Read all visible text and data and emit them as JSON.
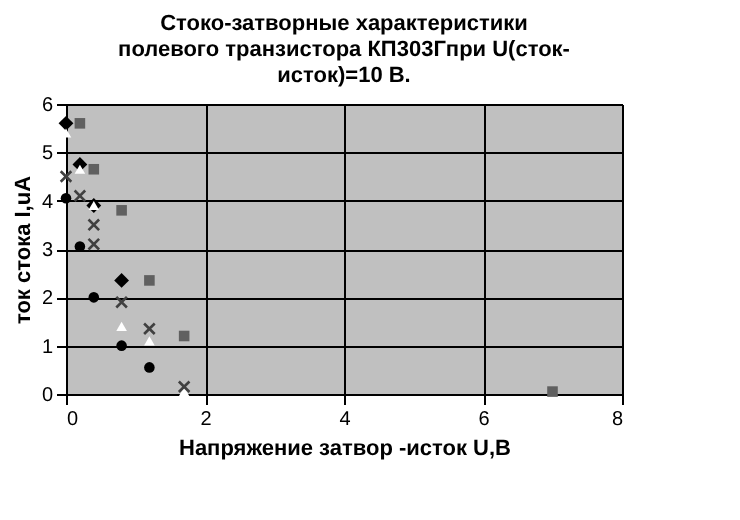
{
  "chart_data": {
    "type": "scatter",
    "title": [
      "Стоко-затворные  характеристики",
      "полевого транзистора КП303Гпри U(сток-",
      "исток)=10 В."
    ],
    "xlabel": "Напряжение затвор -исток U,B",
    "ylabel": "ток стока I,uA",
    "xlim": [
      0,
      8
    ],
    "xticks": [
      0,
      2,
      4,
      6,
      8
    ],
    "ylim": [
      0,
      6
    ],
    "yticks": [
      0,
      1,
      2,
      3,
      4,
      5,
      6
    ],
    "grid": true,
    "series": [
      {
        "color": "#000000",
        "marker": "diamond",
        "x": [
          0,
          0.2,
          0.4,
          0.8
        ],
        "values": [
          5.6,
          4.75,
          3.9,
          2.35
        ]
      },
      {
        "color": "#606060",
        "marker": "square",
        "x": [
          0.2,
          0.4,
          0.8,
          1.2,
          1.7,
          7.0
        ],
        "values": [
          5.6,
          4.65,
          3.8,
          2.35,
          1.2,
          0.05
        ]
      },
      {
        "color": "#ffffff",
        "marker": "triangle",
        "x": [
          0,
          0.2,
          0.4,
          0.8,
          1.2,
          1.7
        ],
        "values": [
          5.4,
          4.65,
          3.9,
          1.4,
          1.1,
          0.05
        ]
      },
      {
        "color": "#404040",
        "marker": "cross",
        "x": [
          0,
          0.2,
          0.4,
          0.4,
          0.8,
          1.2,
          1.7
        ],
        "values": [
          4.5,
          4.1,
          3.5,
          3.1,
          1.9,
          1.35,
          0.15
        ]
      },
      {
        "color": "#000000",
        "marker": "circle",
        "x": [
          0,
          0.2,
          0.4,
          0.8,
          1.2
        ],
        "values": [
          4.05,
          3.05,
          2.0,
          1.0,
          0.55
        ]
      }
    ]
  }
}
